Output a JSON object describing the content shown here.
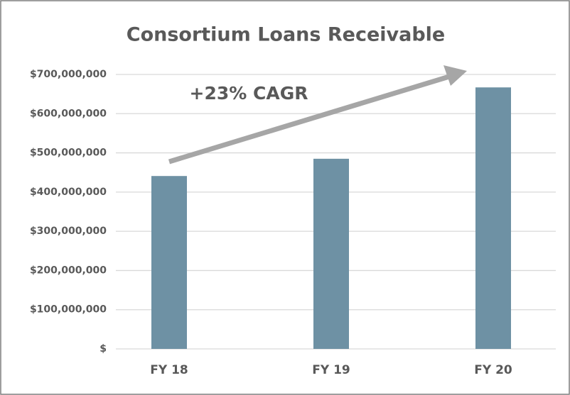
{
  "chart_data": {
    "type": "bar",
    "title": "Consortium Loans Receivable",
    "annotation": "+23% CAGR",
    "categories": [
      "FY 18",
      "FY 19",
      "FY 20"
    ],
    "values": [
      441000000,
      485000000,
      667000000
    ],
    "color": "#6e91a4",
    "ylim": [
      0,
      700000000
    ],
    "yticks": [
      {
        "value": 0,
        "label": "$"
      },
      {
        "value": 100000000,
        "label": "$100,000,000"
      },
      {
        "value": 200000000,
        "label": "$200,000,000"
      },
      {
        "value": 300000000,
        "label": "$300,000,000"
      },
      {
        "value": 400000000,
        "label": "$400,000,000"
      },
      {
        "value": 500000000,
        "label": "$500,000,000"
      },
      {
        "value": 600000000,
        "label": "$600,000,000"
      },
      {
        "value": 700000000,
        "label": "$700,000,000"
      }
    ],
    "grid": true
  }
}
